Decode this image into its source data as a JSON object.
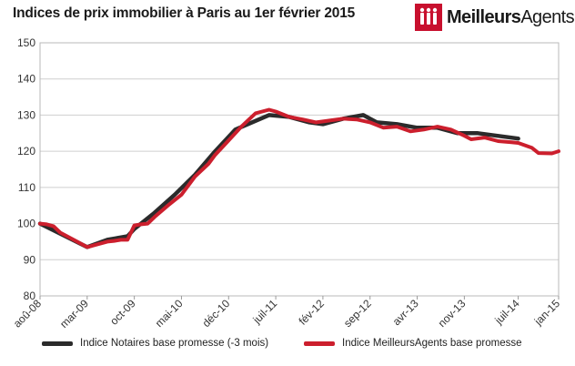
{
  "title": "Indices de prix immobilier à Paris au 1er février 2015",
  "brand": {
    "name_part1": "Meilleurs",
    "name_part2": "Agents",
    "logo_color": "#c8102e"
  },
  "chart_data": {
    "type": "line",
    "title": "Indices de prix immobilier à Paris au 1er février 2015",
    "xlabel": "",
    "ylabel": "",
    "ylim": [
      80,
      150
    ],
    "yticks": [
      80,
      90,
      100,
      110,
      120,
      130,
      140,
      150
    ],
    "xticks": [
      "aoû-08",
      "mar-09",
      "oct-09",
      "mai-10",
      "déc-10",
      "juil-11",
      "fév-12",
      "sep-12",
      "avr-13",
      "nov-13",
      "juil-14",
      "jan-15"
    ],
    "x_start": "aoû-08",
    "x_end": "jan-15",
    "grid": true,
    "legend_position": "bottom",
    "series": [
      {
        "name": "Indice Notaires base promesse (-3 mois)",
        "color": "#2b2b2b",
        "points": [
          [
            "aoû-08",
            100
          ],
          [
            "mar-09",
            93.5
          ],
          [
            "jun-09",
            95.5
          ],
          [
            "sep-09",
            96.5
          ],
          [
            "oct-09",
            98.5
          ],
          [
            "jan-10",
            103
          ],
          [
            "avr-10",
            108
          ],
          [
            "jul-10",
            113.5
          ],
          [
            "oct-10",
            120
          ],
          [
            "jan-11",
            126
          ],
          [
            "juin-11",
            130
          ],
          [
            "sep-11",
            129.5
          ],
          [
            "déc-11",
            128
          ],
          [
            "fév-12",
            127.5
          ],
          [
            "mai-12",
            129
          ],
          [
            "aoû-12",
            130
          ],
          [
            "oct-12",
            128
          ],
          [
            "jan-13",
            127.5
          ],
          [
            "avr-13",
            126.5
          ],
          [
            "juil-13",
            126.5
          ],
          [
            "oct-13",
            125
          ],
          [
            "jan-14",
            125
          ],
          [
            "juil-14",
            123.5
          ]
        ]
      },
      {
        "name": "Indice MeilleursAgents base promesse",
        "color": "#cc1f2d",
        "points": [
          [
            "aoû-08",
            100
          ],
          [
            "sep-08",
            99.8
          ],
          [
            "oct-08",
            99.3
          ],
          [
            "nov-08",
            97.5
          ],
          [
            "jan-09",
            95.5
          ],
          [
            "mar-09",
            93.5
          ],
          [
            "avr-09",
            94
          ],
          [
            "juin-09",
            95
          ],
          [
            "juil-09",
            95.2
          ],
          [
            "aoû-09",
            95.5
          ],
          [
            "sep-09",
            95.5
          ],
          [
            "oct-09",
            99.5
          ],
          [
            "nov-09",
            99.8
          ],
          [
            "déc-09",
            100
          ],
          [
            "jan-10",
            101.8
          ],
          [
            "mar-10",
            105
          ],
          [
            "mai-10",
            108
          ],
          [
            "juil-10",
            113
          ],
          [
            "sep-10",
            116.5
          ],
          [
            "oct-10",
            119
          ],
          [
            "déc-10",
            123
          ],
          [
            "fév-11",
            127
          ],
          [
            "avr-11",
            130.5
          ],
          [
            "juin-11",
            131.5
          ],
          [
            "juil-11",
            131
          ],
          [
            "sep-11",
            129.5
          ],
          [
            "nov-11",
            128.8
          ],
          [
            "jan-12",
            128
          ],
          [
            "mar-12",
            128.5
          ],
          [
            "mai-12",
            129
          ],
          [
            "juil-12",
            128.8
          ],
          [
            "sep-12",
            128
          ],
          [
            "nov-12",
            126.5
          ],
          [
            "jan-13",
            126.8
          ],
          [
            "mar-13",
            125.5
          ],
          [
            "mai-13",
            126
          ],
          [
            "juil-13",
            126.8
          ],
          [
            "sep-13",
            126
          ],
          [
            "nov-13",
            124.3
          ],
          [
            "déc-13",
            123.3
          ],
          [
            "fév-14",
            123.8
          ],
          [
            "avr-14",
            122.8
          ],
          [
            "juin-14",
            122.5
          ],
          [
            "juil-14",
            122.3
          ],
          [
            "sep-14",
            121
          ],
          [
            "oct-14",
            119.5
          ],
          [
            "déc-14",
            119.4
          ],
          [
            "jan-15",
            120
          ]
        ]
      }
    ]
  },
  "legend": [
    {
      "label": "Indice Notaires base promesse (-3 mois)",
      "color": "#2b2b2b"
    },
    {
      "label": "Indice MeilleursAgents base promesse",
      "color": "#cc1f2d"
    }
  ]
}
